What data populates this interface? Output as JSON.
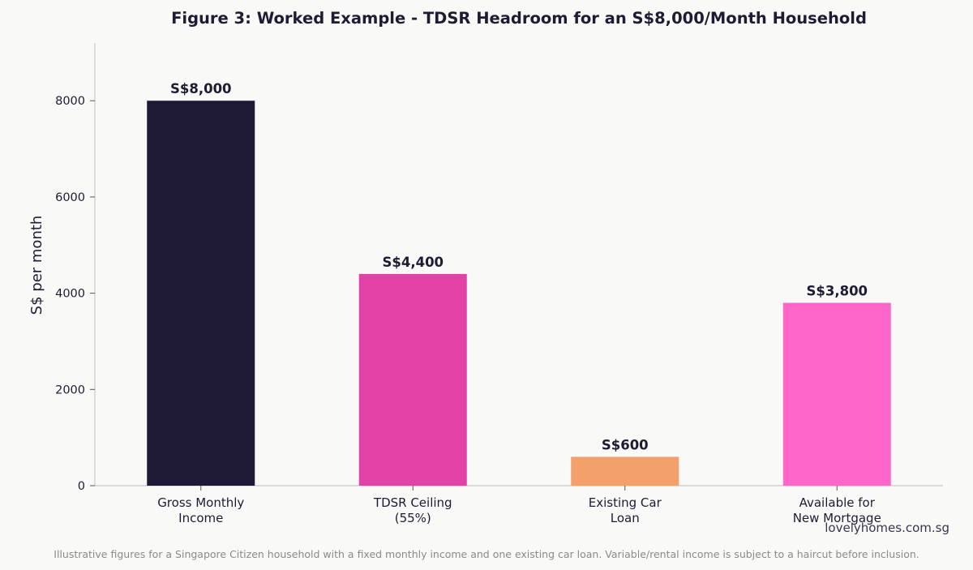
{
  "chart_data": {
    "type": "bar",
    "title": "Figure 3: Worked Example - TDSR Headroom for an S$8,000/Month Household",
    "ylabel": "S$ per month",
    "xlabel": "",
    "categories": [
      [
        "Gross Monthly",
        "Income"
      ],
      [
        "TDSR Ceiling",
        "(55%)"
      ],
      [
        "Existing Car",
        "Loan"
      ],
      [
        "Available for",
        "New Mortgage"
      ]
    ],
    "values": [
      8000,
      4400,
      600,
      3800
    ],
    "value_labels": [
      "S$8,000",
      "S$4,400",
      "S$600",
      "S$3,800"
    ],
    "colors": [
      "#1e1935",
      "#e241a5",
      "#f4a06c",
      "#ff66c9"
    ],
    "ylim": [
      0,
      9200
    ],
    "yticks": [
      0,
      2000,
      4000,
      6000,
      8000
    ],
    "grid": false,
    "legend": "none"
  },
  "watermark": "lovelyhomes.com.sg",
  "footnote": "Illustrative figures for a Singapore Citizen household with a fixed monthly income and one existing car loan. Variable/rental income is subject to a haircut before inclusion."
}
